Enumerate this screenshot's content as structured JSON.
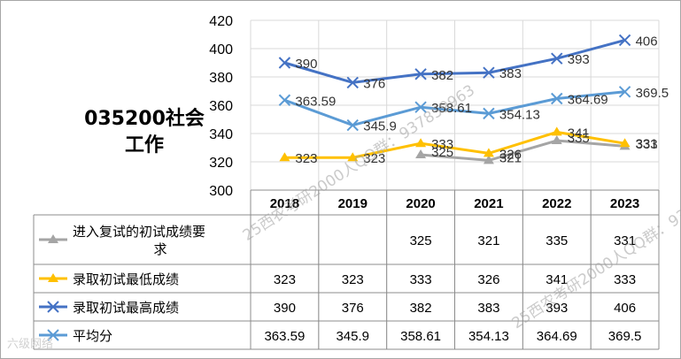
{
  "title": {
    "line1": "035200社会",
    "line2": "工作"
  },
  "watermarks": [
    "25西农考研2000人QQ群：937859963",
    "25西农考研2000人QQ群：93"
  ],
  "logo_text": "六级网络",
  "chart_data": {
    "type": "line",
    "categories": [
      "2018",
      "2019",
      "2020",
      "2021",
      "2022",
      "2023"
    ],
    "ylim": [
      300,
      420
    ],
    "yticks": [
      300,
      320,
      340,
      360,
      380,
      400,
      420
    ],
    "grid": true,
    "legend": "table-left",
    "series": [
      {
        "name": "进入复试的初试成绩要求",
        "values": [
          null,
          null,
          325,
          321,
          335,
          331
        ],
        "labels": [
          "",
          "",
          "325",
          "321",
          "335",
          "331"
        ],
        "color": "#a5a5a5",
        "marker": "triangle"
      },
      {
        "name": "录取初试最低成绩",
        "values": [
          323,
          323,
          333,
          326,
          341,
          333
        ],
        "labels": [
          "323",
          "323",
          "333",
          "326",
          "341",
          "333"
        ],
        "color": "#ffc000",
        "marker": "triangle"
      },
      {
        "name": "录取初试最高成绩",
        "values": [
          390,
          376,
          382,
          383,
          393,
          406
        ],
        "labels": [
          "390",
          "376",
          "382",
          "383",
          "393",
          "406"
        ],
        "color": "#4472c4",
        "marker": "x"
      },
      {
        "name": "平均分",
        "values": [
          363.59,
          345.9,
          358.61,
          354.13,
          364.69,
          369.5
        ],
        "labels": [
          "363.59",
          "345.9",
          "358.61",
          "354.13",
          "364.69",
          "369.5"
        ],
        "color": "#5b9bd5",
        "marker": "x"
      }
    ]
  }
}
